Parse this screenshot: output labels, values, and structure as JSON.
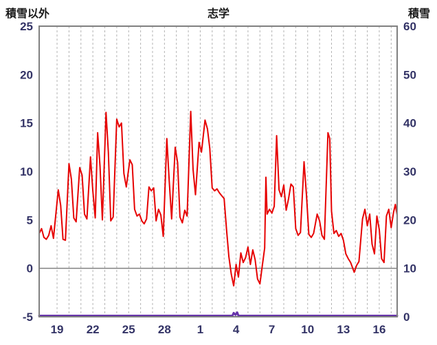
{
  "header": {
    "left_axis_label": "積雪以外",
    "title": "志学",
    "right_axis_label": "積雪"
  },
  "colors": {
    "temperature_line": "#e60000",
    "snow_line": "#6633aa",
    "grid": "#b3b3b3",
    "border": "#808080",
    "zero_line": "#808080",
    "tick_text": "#333366"
  },
  "chart_data": {
    "type": "line",
    "title": "志学",
    "left_axis": {
      "label": "積雪以外",
      "min": -5,
      "max": 25,
      "ticks": [
        25,
        20,
        15,
        10,
        5,
        0,
        -5
      ]
    },
    "right_axis": {
      "label": "積雪",
      "min": 0,
      "max": 60,
      "ticks": [
        60,
        50,
        40,
        30,
        20,
        10,
        0
      ]
    },
    "x_axis": {
      "min": 0,
      "max": 30,
      "tick_labels": [
        "19",
        "22",
        "25",
        "28",
        "1",
        "4",
        "7",
        "10",
        "13",
        "16"
      ],
      "tick_positions": [
        1.5,
        4.5,
        7.5,
        10.5,
        13.5,
        16.5,
        19.5,
        22.5,
        25.5,
        28.5
      ],
      "grid_start": 1.5,
      "grid_end": 29.5,
      "grid_step": 1
    },
    "zero_line": true,
    "series": [
      {
        "name": "積雪以外",
        "axis": "left",
        "color": "#e60000",
        "width": 2,
        "points": [
          [
            0,
            3.6
          ],
          [
            0.2,
            4.1
          ],
          [
            0.4,
            3.2
          ],
          [
            0.6,
            3.0
          ],
          [
            0.8,
            3.4
          ],
          [
            1.0,
            4.4
          ],
          [
            1.2,
            3.1
          ],
          [
            1.6,
            8.1
          ],
          [
            1.8,
            6.5
          ],
          [
            2.0,
            3.0
          ],
          [
            2.2,
            2.9
          ],
          [
            2.5,
            10.8
          ],
          [
            2.7,
            9.2
          ],
          [
            2.9,
            5.2
          ],
          [
            3.1,
            4.8
          ],
          [
            3.4,
            10.4
          ],
          [
            3.6,
            9.6
          ],
          [
            3.8,
            5.6
          ],
          [
            4.0,
            5.1
          ],
          [
            4.3,
            11.5
          ],
          [
            4.5,
            8.0
          ],
          [
            4.7,
            5.2
          ],
          [
            4.9,
            14.0
          ],
          [
            5.1,
            10.5
          ],
          [
            5.3,
            5.0
          ],
          [
            5.6,
            16.1
          ],
          [
            5.8,
            12.0
          ],
          [
            6.0,
            4.9
          ],
          [
            6.2,
            5.3
          ],
          [
            6.5,
            15.4
          ],
          [
            6.7,
            14.6
          ],
          [
            6.9,
            15.0
          ],
          [
            7.1,
            9.8
          ],
          [
            7.3,
            8.4
          ],
          [
            7.6,
            11.2
          ],
          [
            7.8,
            10.7
          ],
          [
            8.0,
            6.1
          ],
          [
            8.2,
            5.4
          ],
          [
            8.4,
            5.6
          ],
          [
            8.6,
            4.9
          ],
          [
            8.8,
            4.6
          ],
          [
            9.0,
            5.1
          ],
          [
            9.2,
            8.4
          ],
          [
            9.4,
            8.0
          ],
          [
            9.6,
            8.3
          ],
          [
            9.8,
            4.9
          ],
          [
            10.0,
            6.1
          ],
          [
            10.2,
            5.5
          ],
          [
            10.4,
            3.3
          ],
          [
            10.7,
            13.4
          ],
          [
            10.9,
            9.0
          ],
          [
            11.1,
            5.1
          ],
          [
            11.4,
            12.5
          ],
          [
            11.6,
            10.9
          ],
          [
            11.8,
            5.3
          ],
          [
            12.0,
            4.7
          ],
          [
            12.2,
            6.0
          ],
          [
            12.4,
            5.4
          ],
          [
            12.7,
            16.2
          ],
          [
            12.9,
            10.2
          ],
          [
            13.1,
            7.6
          ],
          [
            13.4,
            13.0
          ],
          [
            13.6,
            12.0
          ],
          [
            13.9,
            15.3
          ],
          [
            14.1,
            14.4
          ],
          [
            14.3,
            12.4
          ],
          [
            14.5,
            8.3
          ],
          [
            14.7,
            8.0
          ],
          [
            14.9,
            8.2
          ],
          [
            15.1,
            7.8
          ],
          [
            15.3,
            7.5
          ],
          [
            15.5,
            7.2
          ],
          [
            15.7,
            4.0
          ],
          [
            15.9,
            1.2
          ],
          [
            16.1,
            -0.6
          ],
          [
            16.3,
            -1.8
          ],
          [
            16.5,
            0.4
          ],
          [
            16.7,
            -0.9
          ],
          [
            16.9,
            1.6
          ],
          [
            17.1,
            0.6
          ],
          [
            17.3,
            1.1
          ],
          [
            17.5,
            2.2
          ],
          [
            17.7,
            0.4
          ],
          [
            17.9,
            1.9
          ],
          [
            18.1,
            0.9
          ],
          [
            18.3,
            -1.1
          ],
          [
            18.5,
            -1.6
          ],
          [
            18.7,
            0.3
          ],
          [
            18.9,
            2.1
          ],
          [
            19.0,
            9.4
          ],
          [
            19.1,
            5.6
          ],
          [
            19.3,
            6.1
          ],
          [
            19.5,
            5.7
          ],
          [
            19.7,
            6.4
          ],
          [
            19.9,
            13.7
          ],
          [
            20.1,
            8.1
          ],
          [
            20.3,
            7.4
          ],
          [
            20.5,
            8.6
          ],
          [
            20.7,
            6.0
          ],
          [
            20.9,
            7.2
          ],
          [
            21.1,
            8.7
          ],
          [
            21.3,
            8.4
          ],
          [
            21.5,
            4.1
          ],
          [
            21.7,
            3.4
          ],
          [
            21.9,
            3.7
          ],
          [
            22.2,
            11.0
          ],
          [
            22.4,
            7.6
          ],
          [
            22.6,
            3.5
          ],
          [
            22.8,
            3.2
          ],
          [
            23.0,
            3.6
          ],
          [
            23.3,
            5.6
          ],
          [
            23.5,
            4.9
          ],
          [
            23.7,
            3.4
          ],
          [
            23.9,
            3.0
          ],
          [
            24.2,
            14.0
          ],
          [
            24.35,
            13.4
          ],
          [
            24.5,
            5.9
          ],
          [
            24.7,
            3.6
          ],
          [
            24.9,
            3.9
          ],
          [
            25.1,
            3.3
          ],
          [
            25.3,
            3.6
          ],
          [
            25.5,
            2.9
          ],
          [
            25.7,
            1.5
          ],
          [
            25.9,
            1.0
          ],
          [
            26.1,
            0.6
          ],
          [
            26.4,
            -0.4
          ],
          [
            26.6,
            0.3
          ],
          [
            26.8,
            0.7
          ],
          [
            27.1,
            5.1
          ],
          [
            27.3,
            6.1
          ],
          [
            27.5,
            4.4
          ],
          [
            27.7,
            5.6
          ],
          [
            27.9,
            2.5
          ],
          [
            28.1,
            1.5
          ],
          [
            28.3,
            5.4
          ],
          [
            28.5,
            4.0
          ],
          [
            28.7,
            1.0
          ],
          [
            28.9,
            0.6
          ],
          [
            29.1,
            5.4
          ],
          [
            29.3,
            6.1
          ],
          [
            29.5,
            4.2
          ],
          [
            29.7,
            5.8
          ],
          [
            29.85,
            6.6
          ],
          [
            30,
            5.5
          ]
        ]
      },
      {
        "name": "積雪",
        "axis": "right",
        "color": "#6633aa",
        "width": 3,
        "points": [
          [
            0,
            0
          ],
          [
            16.2,
            0
          ],
          [
            16.3,
            0.8
          ],
          [
            16.45,
            0.4
          ],
          [
            16.6,
            0.9
          ],
          [
            16.7,
            0
          ],
          [
            30,
            0
          ]
        ]
      }
    ]
  }
}
